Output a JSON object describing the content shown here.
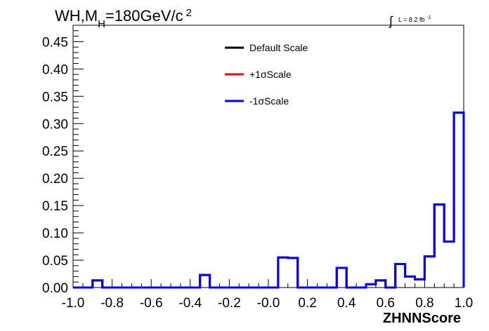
{
  "chart_data": {
    "type": "line",
    "title": {
      "main": "WH,M",
      "sub": "H",
      "rest": "=180GeV/c",
      "sup": "2"
    },
    "lumi": {
      "integral": "∫",
      "text": "L = 8.2 fb",
      "sup": "-1"
    },
    "xlabel": "ZHNNScore",
    "xlim": [
      -1.0,
      1.0
    ],
    "ylim": [
      0.0,
      0.48
    ],
    "x_ticks": [
      "-1.0",
      "-0.8",
      "-0.6",
      "-0.4",
      "-0.2",
      "-0.0",
      "0.2",
      "0.4",
      "0.6",
      "0.8",
      "1.0"
    ],
    "y_ticks": [
      "0.00",
      "0.05",
      "0.10",
      "0.15",
      "0.20",
      "0.25",
      "0.30",
      "0.35",
      "0.40",
      "0.45"
    ],
    "bin_edges": [
      -1.0,
      -0.95,
      -0.9,
      -0.85,
      -0.8,
      -0.75,
      -0.7,
      -0.65,
      -0.6,
      -0.55,
      -0.5,
      -0.45,
      -0.4,
      -0.35,
      -0.3,
      -0.25,
      -0.2,
      -0.15,
      -0.1,
      -0.05,
      0.0,
      0.05,
      0.1,
      0.15,
      0.2,
      0.25,
      0.3,
      0.35,
      0.4,
      0.45,
      0.5,
      0.55,
      0.6,
      0.65,
      0.7,
      0.75,
      0.8,
      0.85,
      0.9,
      0.95,
      1.0
    ],
    "series": [
      {
        "name": "Default Scale",
        "color": "#000000",
        "values": [
          0,
          0,
          0.013,
          0,
          0,
          0,
          0,
          0,
          0,
          0,
          0,
          0,
          0,
          0.023,
          0,
          0,
          0,
          0,
          0,
          0,
          0,
          0.055,
          0.054,
          0,
          0,
          0,
          0,
          0.036,
          0,
          0,
          0.006,
          0.013,
          0,
          0.043,
          0.02,
          0.015,
          0.057,
          0.152,
          0.084,
          0.32
        ]
      },
      {
        "name": "+1σScale",
        "color": "#ff0000",
        "values": [
          0,
          0,
          0.013,
          0,
          0,
          0,
          0,
          0,
          0,
          0,
          0,
          0,
          0,
          0.023,
          0,
          0,
          0,
          0,
          0,
          0,
          0,
          0.055,
          0.054,
          0,
          0,
          0,
          0,
          0.036,
          0,
          0,
          0.006,
          0.013,
          0,
          0.043,
          0.02,
          0.015,
          0.057,
          0.152,
          0.084,
          0.32
        ]
      },
      {
        "name": "-1σScale",
        "color": "#0000ff",
        "values": [
          0,
          0,
          0.013,
          0,
          0,
          0,
          0,
          0,
          0,
          0,
          0,
          0,
          0,
          0.023,
          0,
          0,
          0,
          0,
          0,
          0,
          0,
          0.055,
          0.054,
          0,
          0,
          0,
          0,
          0.036,
          0,
          0,
          0.006,
          0.013,
          0,
          0.043,
          0.02,
          0.015,
          0.057,
          0.152,
          0.084,
          0.32
        ]
      }
    ],
    "legend_position": "top-center",
    "grid": false
  }
}
